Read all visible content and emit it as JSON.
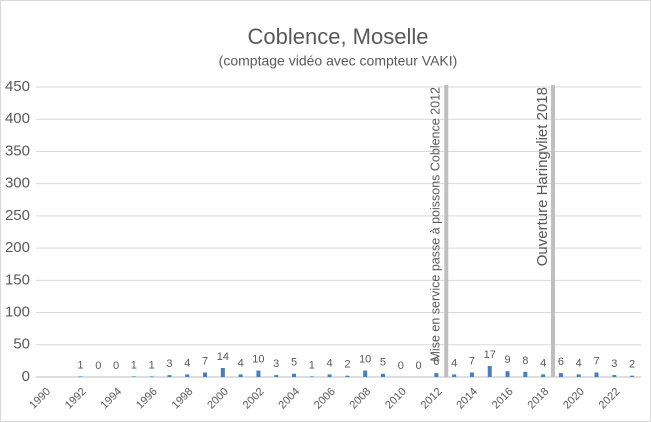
{
  "chart_data": {
    "type": "bar",
    "title": "Coblence, Moselle",
    "subtitle": "(comptage vidéo avec compteur VAKI)",
    "categories": [
      "1990",
      null,
      "1992",
      null,
      "1994",
      null,
      "1996",
      null,
      "1998",
      null,
      "2000",
      null,
      "2002",
      null,
      "2004",
      null,
      "2006",
      null,
      "2008",
      null,
      "2010",
      null,
      "2012",
      null,
      "2014",
      null,
      "2016",
      null,
      "2018",
      null,
      "2020",
      null,
      "2022",
      null
    ],
    "values": [
      null,
      null,
      1,
      0,
      0,
      1,
      1,
      3,
      4,
      7,
      14,
      4,
      10,
      3,
      5,
      1,
      4,
      2,
      10,
      5,
      0,
      0,
      6,
      4,
      7,
      17,
      9,
      8,
      4,
      6,
      4,
      7,
      3,
      2
    ],
    "color": "#4a7ebb",
    "ylim": [
      0,
      450
    ],
    "yticks": [
      0,
      50,
      100,
      150,
      200,
      250,
      300,
      350,
      400,
      450
    ],
    "grid": true,
    "annotations": [
      {
        "text": "Mise en service passe à poissons Coblence 2012",
        "category": "2012"
      },
      {
        "text": "Ouverture Haringvliet 2018",
        "category": "2018"
      }
    ]
  }
}
